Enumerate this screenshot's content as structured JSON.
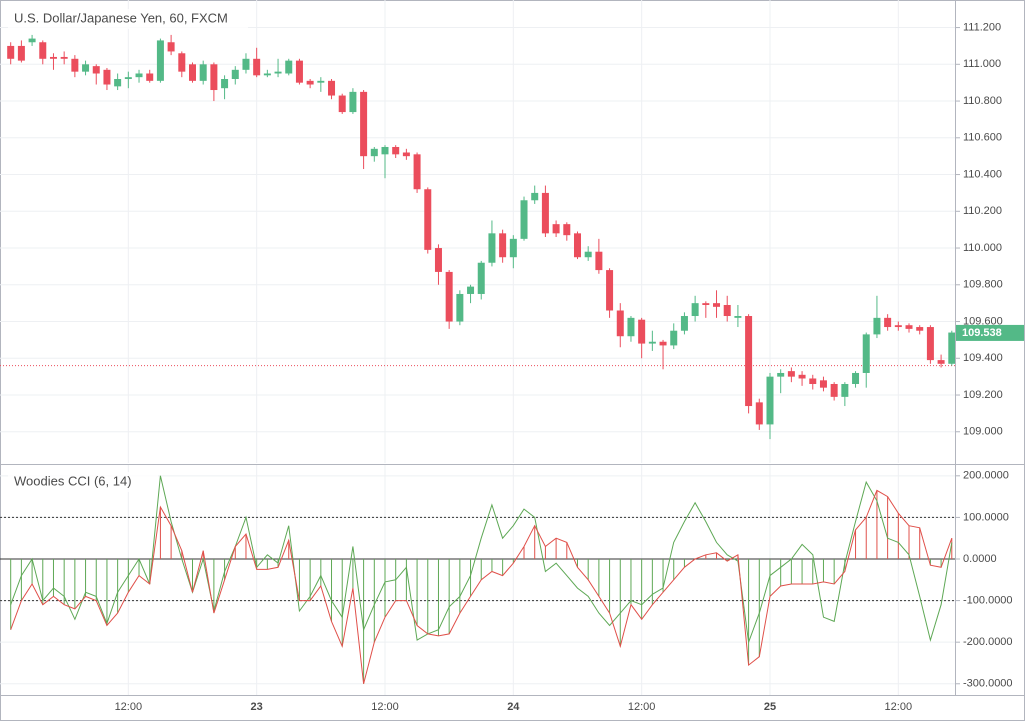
{
  "chart_data": [
    {
      "type": "candlestick",
      "title": "U.S. Dollar/Japanese Yen, 60, FXCM",
      "up_color": "#53b987",
      "down_color": "#eb4d5c",
      "open": [
        111.1,
        111.1,
        111.12,
        111.12,
        111.04,
        111.04,
        111.03,
        110.96,
        110.99,
        110.97,
        110.88,
        110.92,
        110.93,
        110.95,
        110.91,
        111.12,
        111.06,
        111.0,
        110.91,
        111.0,
        110.87,
        110.92,
        110.97,
        111.03,
        110.94,
        110.95,
        110.95,
        111.02,
        110.91,
        110.9,
        110.91,
        110.83,
        110.74,
        110.85,
        110.5,
        110.51,
        110.55,
        110.52,
        110.51,
        110.32,
        110.0,
        109.87,
        109.6,
        109.75,
        109.75,
        109.92,
        110.08,
        109.95,
        110.05,
        110.26,
        110.3,
        110.13,
        110.13,
        110.08,
        109.95,
        109.98,
        109.88,
        109.66,
        109.52,
        109.61,
        109.48,
        109.49,
        109.47,
        109.55,
        109.63,
        109.7,
        109.7,
        109.69,
        109.62,
        109.63,
        109.16,
        109.04,
        109.3,
        109.33,
        109.31,
        109.29,
        109.28,
        109.26,
        109.19,
        109.26,
        109.32,
        109.53,
        109.62,
        109.58,
        109.58,
        109.57,
        109.57,
        109.39,
        109.37
      ],
      "high": [
        111.12,
        111.13,
        111.16,
        111.13,
        111.06,
        111.07,
        111.05,
        111.02,
        111.0,
        110.98,
        110.95,
        110.96,
        110.97,
        110.97,
        111.14,
        111.16,
        111.07,
        111.01,
        111.02,
        111.01,
        110.94,
        110.99,
        111.06,
        111.09,
        110.97,
        111.03,
        111.03,
        111.03,
        110.92,
        110.93,
        110.92,
        110.84,
        110.87,
        110.86,
        110.55,
        110.56,
        110.56,
        110.54,
        110.52,
        110.33,
        110.02,
        109.88,
        109.77,
        109.8,
        109.93,
        110.15,
        110.1,
        110.07,
        110.28,
        110.34,
        110.34,
        110.15,
        110.14,
        110.09,
        110.01,
        110.05,
        109.89,
        109.7,
        109.63,
        109.62,
        109.55,
        109.5,
        109.59,
        109.65,
        109.74,
        109.71,
        109.77,
        109.74,
        109.69,
        109.64,
        109.18,
        109.32,
        109.34,
        109.35,
        109.33,
        109.31,
        109.3,
        109.27,
        109.27,
        109.33,
        109.54,
        109.74,
        109.64,
        109.6,
        109.59,
        109.58,
        109.58,
        109.42,
        109.55
      ],
      "low": [
        111.0,
        111.01,
        111.1,
        111.0,
        110.97,
        111.0,
        110.93,
        110.94,
        110.89,
        110.86,
        110.86,
        110.87,
        110.9,
        110.9,
        110.9,
        111.05,
        110.93,
        110.9,
        110.89,
        110.8,
        110.81,
        110.89,
        110.95,
        110.93,
        110.93,
        110.93,
        110.94,
        110.89,
        110.87,
        110.85,
        110.81,
        110.73,
        110.73,
        110.43,
        110.47,
        110.38,
        110.49,
        110.48,
        110.3,
        109.97,
        109.8,
        109.56,
        109.58,
        109.7,
        109.72,
        109.9,
        109.92,
        109.89,
        110.04,
        110.24,
        110.06,
        110.06,
        110.04,
        109.94,
        109.93,
        109.86,
        109.62,
        109.46,
        109.49,
        109.4,
        109.44,
        109.34,
        109.45,
        109.53,
        109.6,
        109.62,
        109.62,
        109.6,
        109.57,
        109.1,
        109.01,
        108.96,
        109.21,
        109.27,
        109.25,
        109.23,
        109.22,
        109.17,
        109.14,
        109.24,
        109.24,
        109.51,
        109.55,
        109.55,
        109.54,
        109.53,
        109.37,
        109.35,
        109.36
      ],
      "close": [
        111.03,
        111.02,
        111.14,
        111.03,
        111.03,
        111.03,
        110.96,
        111.0,
        110.95,
        110.89,
        110.92,
        110.93,
        110.95,
        110.91,
        111.13,
        111.07,
        110.96,
        110.91,
        111.0,
        110.86,
        110.92,
        110.97,
        111.03,
        110.94,
        110.95,
        110.96,
        111.02,
        110.9,
        110.89,
        110.91,
        110.83,
        110.74,
        110.85,
        110.5,
        110.54,
        110.55,
        110.51,
        110.5,
        110.32,
        109.99,
        109.87,
        109.6,
        109.75,
        109.79,
        109.92,
        110.08,
        109.95,
        110.05,
        110.26,
        110.3,
        110.08,
        110.08,
        110.07,
        109.95,
        109.98,
        109.88,
        109.66,
        109.52,
        109.62,
        109.48,
        109.49,
        109.47,
        109.55,
        109.63,
        109.7,
        109.69,
        109.68,
        109.63,
        109.63,
        109.14,
        109.04,
        109.3,
        109.32,
        109.3,
        109.29,
        109.26,
        109.24,
        109.19,
        109.26,
        109.32,
        109.53,
        109.62,
        109.57,
        109.57,
        109.56,
        109.55,
        109.39,
        109.37,
        109.54
      ],
      "xlim": [
        -1,
        88.3
      ],
      "xticks": [
        {
          "value": 11,
          "label": "12:00"
        },
        23,
        {
          "value": 35,
          "label": "12:00"
        },
        {
          "value": 47,
          "label": "24"
        },
        {
          "value": 59,
          "label": "12:00"
        },
        {
          "value": 71,
          "label": "25"
        },
        {
          "value": 83,
          "label": "12:00"
        }
      ],
      "ylim": [
        108.83,
        111.35
      ],
      "yticks": [
        {
          "value": 111.2,
          "label": "111.200"
        },
        {
          "value": 111.0,
          "label": "111.000"
        },
        {
          "value": 110.8,
          "label": "110.800"
        },
        {
          "value": 110.6,
          "label": "110.600"
        },
        {
          "value": 110.4,
          "label": "110.400"
        },
        {
          "value": 110.2,
          "label": "110.200"
        },
        {
          "value": 110.0,
          "label": "110.000"
        },
        {
          "value": 109.8,
          "label": "109.800"
        },
        {
          "value": 109.6,
          "label": "109.600"
        },
        {
          "value": 109.4,
          "label": "109.400"
        },
        {
          "value": 109.2,
          "label": "109.200"
        },
        {
          "value": 109.0,
          "label": "109.000"
        }
      ],
      "last_price": {
        "value": 109.538,
        "label": "109.538"
      },
      "previous_close": 109.36,
      "grid": true
    },
    {
      "type": "cci",
      "title": "Woodies CCI (6, 14)",
      "series": [
        {
          "color": "#5ea855",
          "values": [
            -110,
            -40,
            0,
            -100,
            -70,
            -90,
            -145,
            -80,
            -90,
            -155,
            -80,
            -40,
            0,
            -60,
            200,
            90,
            0,
            -80,
            0,
            -125,
            -30,
            30,
            100,
            -20,
            10,
            -10,
            80,
            -125,
            -90,
            -40,
            -100,
            -140,
            30,
            -170,
            -110,
            -55,
            -50,
            -20,
            -195,
            -180,
            -170,
            -115,
            -90,
            -40,
            50,
            130,
            50,
            80,
            120,
            100,
            -30,
            -10,
            -40,
            -70,
            -90,
            -130,
            -160,
            -130,
            -100,
            -110,
            -85,
            -70,
            40,
            90,
            135,
            90,
            40,
            10,
            -5,
            -200,
            -130,
            -40,
            -20,
            0,
            35,
            10,
            -140,
            -150,
            -10,
            90,
            185,
            140,
            50,
            40,
            10,
            -90,
            -195,
            -110,
            40
          ]
        },
        {
          "color": "#e0504a",
          "histogram": true,
          "values": [
            -170,
            -100,
            -60,
            -110,
            -90,
            -110,
            -120,
            -90,
            -100,
            -160,
            -130,
            -80,
            -40,
            -60,
            125,
            80,
            20,
            -80,
            20,
            -130,
            -50,
            30,
            60,
            -25,
            -25,
            -20,
            45,
            -100,
            -100,
            -65,
            -150,
            -210,
            -70,
            -300,
            -200,
            -140,
            -100,
            -100,
            -160,
            -180,
            -185,
            -180,
            -130,
            -90,
            -50,
            -30,
            -40,
            -10,
            30,
            80,
            30,
            50,
            40,
            -20,
            -50,
            -90,
            -130,
            -210,
            -110,
            -145,
            -110,
            -80,
            -50,
            -20,
            0,
            10,
            15,
            -5,
            10,
            -255,
            -235,
            -90,
            -65,
            -60,
            -60,
            -60,
            -55,
            -60,
            -30,
            70,
            100,
            165,
            150,
            110,
            80,
            75,
            -15,
            -20,
            50
          ]
        }
      ],
      "ylim": [
        -327,
        226
      ],
      "yticks": [
        {
          "value": 200,
          "label": "200.0000"
        },
        {
          "value": 100,
          "label": "100.0000"
        },
        {
          "value": 0,
          "label": "0.0000"
        },
        {
          "value": -100,
          "label": "-100.0000"
        },
        {
          "value": -200,
          "label": "-200.0000"
        },
        {
          "value": -300,
          "label": "-300.0000"
        }
      ],
      "levels": [
        {
          "value": 100,
          "style": "dotted"
        },
        {
          "value": 0,
          "style": "solid"
        },
        {
          "value": -100,
          "style": "dotted"
        }
      ],
      "grid": true
    }
  ]
}
